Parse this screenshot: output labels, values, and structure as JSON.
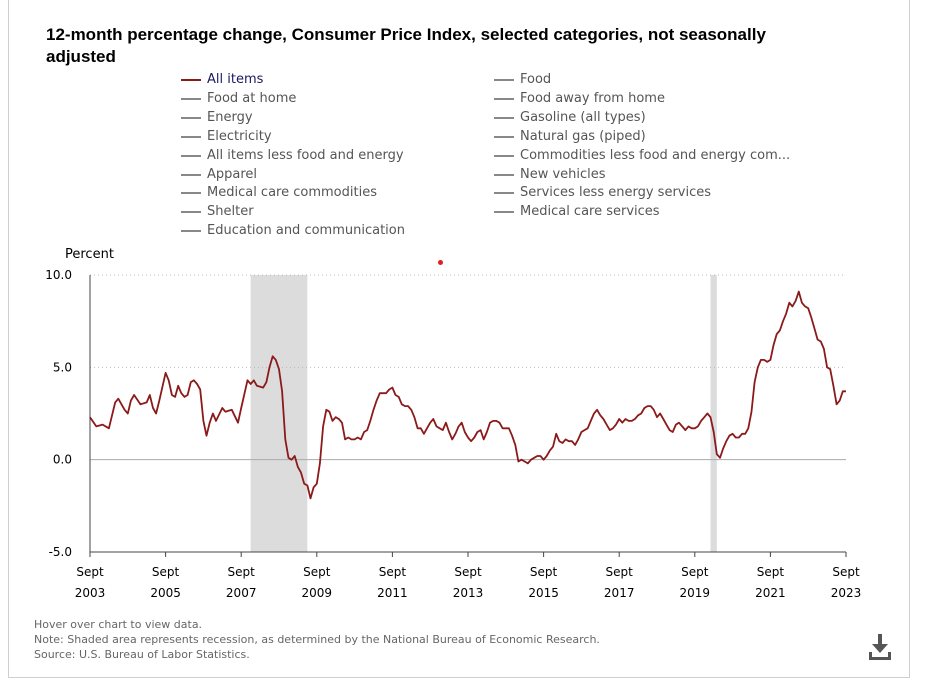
{
  "title": "12-month percentage change, Consumer Price Index, selected categories, not seasonally adjusted",
  "legend": {
    "left": [
      "All items",
      "Food at home",
      "Energy",
      "Electricity",
      "All items less food and energy",
      "Apparel",
      "Medical care commodities",
      "Shelter",
      "Education and communication"
    ],
    "right": [
      "Food",
      "Food away from home",
      "Gasoline (all types)",
      "Natural gas (piped)",
      "Commodities less food and energy com...",
      "New vehicles",
      "Services less energy services",
      "Medical care services"
    ]
  },
  "notes": {
    "hover": "Hover over chart to view data.",
    "shading": "Note: Shaded area represents recession, as determined by the National Bureau of Economic Research.",
    "source": "Source: U.S. Bureau of Labor Statistics."
  },
  "icons": {
    "download": "download-icon"
  },
  "colors": {
    "series": "#8b1a1a",
    "recession": "#dcdcdc",
    "grid": "#bbbbbb"
  },
  "chart_data": {
    "type": "line",
    "ylabel": "Percent",
    "ylim": [
      -5,
      10
    ],
    "y_ticks": [
      "10.0",
      "5.0",
      "0.0",
      "-5.0"
    ],
    "x_ticks": [
      {
        "month": "Sept",
        "year": "2003"
      },
      {
        "month": "Sept",
        "year": "2005"
      },
      {
        "month": "Sept",
        "year": "2007"
      },
      {
        "month": "Sept",
        "year": "2009"
      },
      {
        "month": "Sept",
        "year": "2011"
      },
      {
        "month": "Sept",
        "year": "2013"
      },
      {
        "month": "Sept",
        "year": "2015"
      },
      {
        "month": "Sept",
        "year": "2017"
      },
      {
        "month": "Sept",
        "year": "2019"
      },
      {
        "month": "Sept",
        "year": "2021"
      },
      {
        "month": "Sept",
        "year": "2023"
      }
    ],
    "recessions": [
      {
        "start": "2007-12",
        "end": "2009-06"
      },
      {
        "start": "2020-02",
        "end": "2020-04"
      }
    ],
    "grid": "horizontal dotted",
    "series": [
      {
        "name": "All items",
        "points": [
          [
            "2003-09",
            2.3
          ],
          [
            "2003-11",
            1.8
          ],
          [
            "2004-01",
            1.9
          ],
          [
            "2004-03",
            1.7
          ],
          [
            "2004-05",
            3.1
          ],
          [
            "2004-06",
            3.3
          ],
          [
            "2004-08",
            2.7
          ],
          [
            "2004-09",
            2.5
          ],
          [
            "2004-10",
            3.2
          ],
          [
            "2004-11",
            3.5
          ],
          [
            "2005-01",
            3.0
          ],
          [
            "2005-03",
            3.1
          ],
          [
            "2005-04",
            3.5
          ],
          [
            "2005-05",
            2.8
          ],
          [
            "2005-06",
            2.5
          ],
          [
            "2005-07",
            3.2
          ],
          [
            "2005-09",
            4.7
          ],
          [
            "2005-10",
            4.3
          ],
          [
            "2005-11",
            3.5
          ],
          [
            "2005-12",
            3.4
          ],
          [
            "2006-01",
            4.0
          ],
          [
            "2006-02",
            3.6
          ],
          [
            "2006-03",
            3.4
          ],
          [
            "2006-04",
            3.5
          ],
          [
            "2006-05",
            4.2
          ],
          [
            "2006-06",
            4.3
          ],
          [
            "2006-07",
            4.1
          ],
          [
            "2006-08",
            3.8
          ],
          [
            "2006-09",
            2.1
          ],
          [
            "2006-10",
            1.3
          ],
          [
            "2006-11",
            2.0
          ],
          [
            "2006-12",
            2.5
          ],
          [
            "2007-01",
            2.1
          ],
          [
            "2007-03",
            2.8
          ],
          [
            "2007-04",
            2.6
          ],
          [
            "2007-06",
            2.7
          ],
          [
            "2007-08",
            2.0
          ],
          [
            "2007-09",
            2.8
          ],
          [
            "2007-11",
            4.3
          ],
          [
            "2007-12",
            4.1
          ],
          [
            "2008-01",
            4.3
          ],
          [
            "2008-02",
            4.0
          ],
          [
            "2008-04",
            3.9
          ],
          [
            "2008-05",
            4.2
          ],
          [
            "2008-06",
            5.0
          ],
          [
            "2008-07",
            5.6
          ],
          [
            "2008-08",
            5.4
          ],
          [
            "2008-09",
            4.9
          ],
          [
            "2008-10",
            3.7
          ],
          [
            "2008-11",
            1.1
          ],
          [
            "2008-12",
            0.1
          ],
          [
            "2009-01",
            0.0
          ],
          [
            "2009-02",
            0.2
          ],
          [
            "2009-03",
            -0.4
          ],
          [
            "2009-04",
            -0.7
          ],
          [
            "2009-05",
            -1.3
          ],
          [
            "2009-06",
            -1.4
          ],
          [
            "2009-07",
            -2.1
          ],
          [
            "2009-08",
            -1.5
          ],
          [
            "2009-09",
            -1.3
          ],
          [
            "2009-10",
            -0.2
          ],
          [
            "2009-11",
            1.8
          ],
          [
            "2009-12",
            2.7
          ],
          [
            "2010-01",
            2.6
          ],
          [
            "2010-02",
            2.1
          ],
          [
            "2010-03",
            2.3
          ],
          [
            "2010-04",
            2.2
          ],
          [
            "2010-05",
            2.0
          ],
          [
            "2010-06",
            1.1
          ],
          [
            "2010-07",
            1.2
          ],
          [
            "2010-08",
            1.1
          ],
          [
            "2010-09",
            1.1
          ],
          [
            "2010-10",
            1.2
          ],
          [
            "2010-11",
            1.1
          ],
          [
            "2010-12",
            1.5
          ],
          [
            "2011-01",
            1.6
          ],
          [
            "2011-02",
            2.1
          ],
          [
            "2011-03",
            2.7
          ],
          [
            "2011-04",
            3.2
          ],
          [
            "2011-05",
            3.6
          ],
          [
            "2011-06",
            3.6
          ],
          [
            "2011-07",
            3.6
          ],
          [
            "2011-08",
            3.8
          ],
          [
            "2011-09",
            3.9
          ],
          [
            "2011-10",
            3.5
          ],
          [
            "2011-11",
            3.4
          ],
          [
            "2011-12",
            3.0
          ],
          [
            "2012-01",
            2.9
          ],
          [
            "2012-02",
            2.9
          ],
          [
            "2012-03",
            2.7
          ],
          [
            "2012-04",
            2.3
          ],
          [
            "2012-05",
            1.7
          ],
          [
            "2012-06",
            1.7
          ],
          [
            "2012-07",
            1.4
          ],
          [
            "2012-08",
            1.7
          ],
          [
            "2012-09",
            2.0
          ],
          [
            "2012-10",
            2.2
          ],
          [
            "2012-11",
            1.8
          ],
          [
            "2012-12",
            1.7
          ],
          [
            "2013-01",
            1.6
          ],
          [
            "2013-02",
            2.0
          ],
          [
            "2013-03",
            1.5
          ],
          [
            "2013-04",
            1.1
          ],
          [
            "2013-05",
            1.4
          ],
          [
            "2013-06",
            1.8
          ],
          [
            "2013-07",
            2.0
          ],
          [
            "2013-08",
            1.5
          ],
          [
            "2013-09",
            1.2
          ],
          [
            "2013-10",
            1.0
          ],
          [
            "2013-11",
            1.2
          ],
          [
            "2013-12",
            1.5
          ],
          [
            "2014-01",
            1.6
          ],
          [
            "2014-02",
            1.1
          ],
          [
            "2014-03",
            1.5
          ],
          [
            "2014-04",
            2.0
          ],
          [
            "2014-05",
            2.1
          ],
          [
            "2014-06",
            2.1
          ],
          [
            "2014-07",
            2.0
          ],
          [
            "2014-08",
            1.7
          ],
          [
            "2014-09",
            1.7
          ],
          [
            "2014-10",
            1.7
          ],
          [
            "2014-11",
            1.3
          ],
          [
            "2014-12",
            0.8
          ],
          [
            "2015-01",
            -0.1
          ],
          [
            "2015-02",
            0.0
          ],
          [
            "2015-03",
            -0.1
          ],
          [
            "2015-04",
            -0.2
          ],
          [
            "2015-05",
            0.0
          ],
          [
            "2015-06",
            0.1
          ],
          [
            "2015-07",
            0.2
          ],
          [
            "2015-08",
            0.2
          ],
          [
            "2015-09",
            0.0
          ],
          [
            "2015-10",
            0.2
          ],
          [
            "2015-11",
            0.5
          ],
          [
            "2015-12",
            0.7
          ],
          [
            "2016-01",
            1.4
          ],
          [
            "2016-02",
            1.0
          ],
          [
            "2016-03",
            0.9
          ],
          [
            "2016-04",
            1.1
          ],
          [
            "2016-05",
            1.0
          ],
          [
            "2016-06",
            1.0
          ],
          [
            "2016-07",
            0.8
          ],
          [
            "2016-08",
            1.1
          ],
          [
            "2016-09",
            1.5
          ],
          [
            "2016-10",
            1.6
          ],
          [
            "2016-11",
            1.7
          ],
          [
            "2016-12",
            2.1
          ],
          [
            "2017-01",
            2.5
          ],
          [
            "2017-02",
            2.7
          ],
          [
            "2017-03",
            2.4
          ],
          [
            "2017-04",
            2.2
          ],
          [
            "2017-05",
            1.9
          ],
          [
            "2017-06",
            1.6
          ],
          [
            "2017-07",
            1.7
          ],
          [
            "2017-08",
            1.9
          ],
          [
            "2017-09",
            2.2
          ],
          [
            "2017-10",
            2.0
          ],
          [
            "2017-11",
            2.2
          ],
          [
            "2017-12",
            2.1
          ],
          [
            "2018-01",
            2.1
          ],
          [
            "2018-02",
            2.2
          ],
          [
            "2018-03",
            2.4
          ],
          [
            "2018-04",
            2.5
          ],
          [
            "2018-05",
            2.8
          ],
          [
            "2018-06",
            2.9
          ],
          [
            "2018-07",
            2.9
          ],
          [
            "2018-08",
            2.7
          ],
          [
            "2018-09",
            2.3
          ],
          [
            "2018-10",
            2.5
          ],
          [
            "2018-11",
            2.2
          ],
          [
            "2018-12",
            1.9
          ],
          [
            "2019-01",
            1.6
          ],
          [
            "2019-02",
            1.5
          ],
          [
            "2019-03",
            1.9
          ],
          [
            "2019-04",
            2.0
          ],
          [
            "2019-05",
            1.8
          ],
          [
            "2019-06",
            1.6
          ],
          [
            "2019-07",
            1.8
          ],
          [
            "2019-08",
            1.7
          ],
          [
            "2019-09",
            1.7
          ],
          [
            "2019-10",
            1.8
          ],
          [
            "2019-11",
            2.1
          ],
          [
            "2019-12",
            2.3
          ],
          [
            "2020-01",
            2.5
          ],
          [
            "2020-02",
            2.3
          ],
          [
            "2020-03",
            1.5
          ],
          [
            "2020-04",
            0.3
          ],
          [
            "2020-05",
            0.1
          ],
          [
            "2020-06",
            0.6
          ],
          [
            "2020-07",
            1.0
          ],
          [
            "2020-08",
            1.3
          ],
          [
            "2020-09",
            1.4
          ],
          [
            "2020-10",
            1.2
          ],
          [
            "2020-11",
            1.2
          ],
          [
            "2020-12",
            1.4
          ],
          [
            "2021-01",
            1.4
          ],
          [
            "2021-02",
            1.7
          ],
          [
            "2021-03",
            2.6
          ],
          [
            "2021-04",
            4.2
          ],
          [
            "2021-05",
            5.0
          ],
          [
            "2021-06",
            5.4
          ],
          [
            "2021-07",
            5.4
          ],
          [
            "2021-08",
            5.3
          ],
          [
            "2021-09",
            5.4
          ],
          [
            "2021-10",
            6.2
          ],
          [
            "2021-11",
            6.8
          ],
          [
            "2021-12",
            7.0
          ],
          [
            "2022-01",
            7.5
          ],
          [
            "2022-02",
            7.9
          ],
          [
            "2022-03",
            8.5
          ],
          [
            "2022-04",
            8.3
          ],
          [
            "2022-05",
            8.6
          ],
          [
            "2022-06",
            9.1
          ],
          [
            "2022-07",
            8.5
          ],
          [
            "2022-08",
            8.3
          ],
          [
            "2022-09",
            8.2
          ],
          [
            "2022-10",
            7.7
          ],
          [
            "2022-11",
            7.1
          ],
          [
            "2022-12",
            6.5
          ],
          [
            "2023-01",
            6.4
          ],
          [
            "2023-02",
            6.0
          ],
          [
            "2023-03",
            5.0
          ],
          [
            "2023-04",
            4.9
          ],
          [
            "2023-05",
            4.0
          ],
          [
            "2023-06",
            3.0
          ],
          [
            "2023-07",
            3.2
          ],
          [
            "2023-08",
            3.7
          ],
          [
            "2023-09",
            3.7
          ]
        ]
      }
    ]
  }
}
